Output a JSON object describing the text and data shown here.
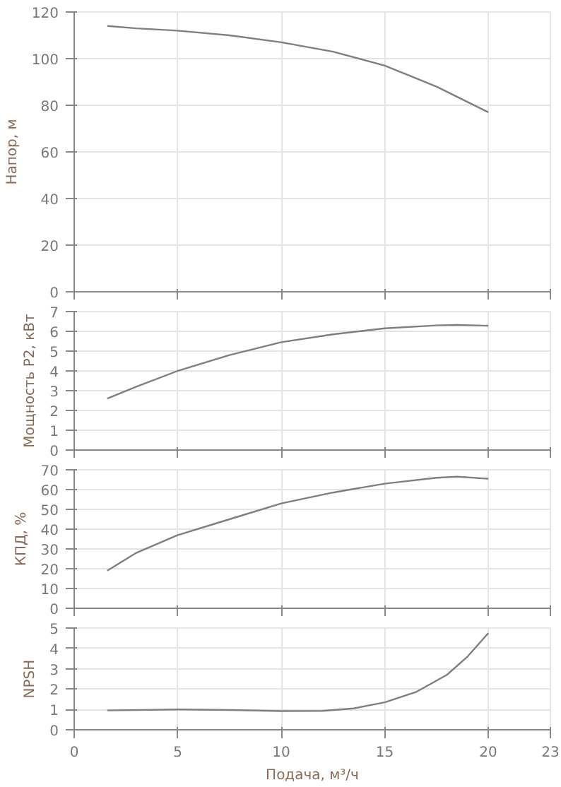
{
  "chart_data": [
    {
      "type": "line",
      "ylabel": "Напор, м",
      "xlim": [
        0,
        23
      ],
      "xticks": [
        0,
        5,
        10,
        15,
        20,
        23
      ],
      "ylim": [
        0,
        120
      ],
      "yticks": [
        0,
        20,
        40,
        60,
        80,
        100,
        120
      ],
      "grid": true,
      "tick_labels": "y",
      "series": [
        {
          "color": "#7f7f7f",
          "x": [
            1.6,
            3,
            5,
            7.5,
            10,
            12.5,
            15,
            17.5,
            20
          ],
          "values": [
            114,
            113,
            112,
            110,
            107,
            103,
            97,
            88,
            77
          ]
        }
      ]
    },
    {
      "type": "line",
      "ylabel": "Мощность P2, кВт",
      "xlim": [
        0,
        23
      ],
      "xticks": [
        0,
        5,
        10,
        15,
        20,
        23
      ],
      "ylim": [
        0,
        7
      ],
      "yticks": [
        0,
        1,
        2,
        3,
        4,
        5,
        6,
        7
      ],
      "grid": true,
      "tick_labels": "y",
      "series": [
        {
          "color": "#7f7f7f",
          "x": [
            1.6,
            3,
            5,
            7.5,
            10,
            12.5,
            15,
            17.5,
            18.5,
            20
          ],
          "values": [
            2.6,
            3.2,
            4.0,
            4.8,
            5.45,
            5.85,
            6.15,
            6.3,
            6.32,
            6.28
          ]
        }
      ]
    },
    {
      "type": "line",
      "ylabel": "КПД, %",
      "xlim": [
        0,
        23
      ],
      "xticks": [
        0,
        5,
        10,
        15,
        20,
        23
      ],
      "ylim": [
        0,
        70
      ],
      "yticks": [
        0,
        10,
        20,
        30,
        40,
        50,
        60,
        70
      ],
      "grid": true,
      "tick_labels": "y",
      "series": [
        {
          "color": "#7f7f7f",
          "x": [
            1.6,
            3,
            5,
            7.5,
            10,
            12.5,
            15,
            17.5,
            18.5,
            20
          ],
          "values": [
            19,
            28,
            37,
            45,
            53,
            58.5,
            63,
            66,
            66.5,
            65.5
          ]
        }
      ]
    },
    {
      "type": "line",
      "ylabel": "NPSH",
      "xlabel": "Подача, м³/ч",
      "xlim": [
        0,
        23
      ],
      "xticks": [
        0,
        5,
        10,
        15,
        20,
        23
      ],
      "ylim": [
        0,
        5
      ],
      "yticks": [
        0,
        1,
        2,
        3,
        4,
        5
      ],
      "grid": true,
      "series": [
        {
          "color": "#7f7f7f",
          "x": [
            1.6,
            5,
            7.5,
            10,
            12,
            13.5,
            15,
            16.5,
            18,
            19,
            20
          ],
          "values": [
            0.95,
            1.0,
            0.97,
            0.92,
            0.93,
            1.05,
            1.35,
            1.85,
            2.7,
            3.6,
            4.75
          ]
        }
      ]
    }
  ]
}
